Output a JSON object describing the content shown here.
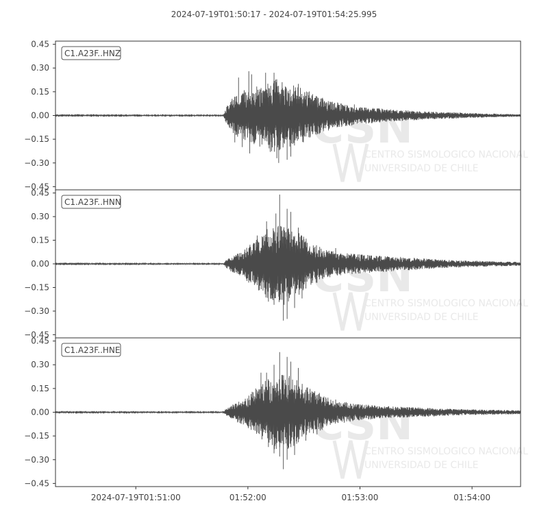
{
  "chart_data": {
    "type": "line",
    "title": "2024-07-19T01:50:17  -  2024-07-19T01:54:25.995",
    "x_ticks": [
      "2024-07-19T01:51:00",
      "01:52:00",
      "01:53:00",
      "01:54:00"
    ],
    "x_tick_seconds": [
      43,
      103,
      163,
      223
    ],
    "x_range_seconds": [
      0,
      248.995
    ],
    "y_ticks": [
      "0.45",
      "0.30",
      "0.15",
      "0.00",
      "−0.15",
      "−0.30",
      "−0.45"
    ],
    "y_tick_values": [
      0.45,
      0.3,
      0.15,
      0.0,
      -0.15,
      -0.3,
      -0.45
    ],
    "grid": false,
    "line_color": "#4a4a4a",
    "watermark": {
      "logo": "CSN",
      "lines": [
        "CENTRO SISMOLOGICO NACIONAL",
        "UNIVERSIDAD DE CHILE"
      ],
      "color": "#e9e9e9"
    },
    "series": [
      {
        "name": "C1.A23F..HNZ",
        "ylim": [
          -0.47,
          0.47
        ],
        "envelope": [
          [
            0,
            0.003
          ],
          [
            90,
            0.004
          ],
          [
            91,
            0.05
          ],
          [
            94,
            0.1
          ],
          [
            100,
            0.16
          ],
          [
            110,
            0.2
          ],
          [
            118,
            0.24
          ],
          [
            124,
            0.21
          ],
          [
            128,
            0.19
          ],
          [
            133,
            0.17
          ],
          [
            141,
            0.12
          ],
          [
            148,
            0.09
          ],
          [
            160,
            0.06
          ],
          [
            178,
            0.04
          ],
          [
            200,
            0.025
          ],
          [
            230,
            0.013
          ],
          [
            248.995,
            0.008
          ]
        ],
        "peaks": [
          [
            103.5,
            0.28
          ],
          [
            112.5,
            0.27
          ],
          [
            117,
            0.27
          ],
          [
            105,
            0.26
          ],
          [
            98,
            0.24
          ],
          [
            100,
            -0.2
          ],
          [
            104,
            -0.24
          ],
          [
            115,
            -0.23
          ],
          [
            118.5,
            -0.27
          ],
          [
            119.5,
            -0.3
          ],
          [
            124,
            -0.28
          ],
          [
            126,
            -0.26
          ],
          [
            96,
            -0.17
          ],
          [
            130,
            -0.15
          ],
          [
            130,
            0.2
          ],
          [
            140,
            0.12
          ],
          [
            160,
            0.07
          ]
        ]
      },
      {
        "name": "C1.A23F..HNN",
        "ylim": [
          -0.47,
          0.47
        ],
        "envelope": [
          [
            0,
            0.003
          ],
          [
            90,
            0.004
          ],
          [
            91,
            0.02
          ],
          [
            94,
            0.05
          ],
          [
            100,
            0.08
          ],
          [
            106,
            0.15
          ],
          [
            113,
            0.22
          ],
          [
            118,
            0.26
          ],
          [
            124,
            0.26
          ],
          [
            130,
            0.2
          ],
          [
            138,
            0.13
          ],
          [
            145,
            0.09
          ],
          [
            155,
            0.07
          ],
          [
            170,
            0.055
          ],
          [
            190,
            0.04
          ],
          [
            210,
            0.025
          ],
          [
            230,
            0.018
          ],
          [
            248.995,
            0.012
          ]
        ],
        "peaks": [
          [
            108,
            0.18
          ],
          [
            113,
            0.27
          ],
          [
            118,
            0.32
          ],
          [
            120,
            0.44
          ],
          [
            124,
            0.35
          ],
          [
            126,
            0.33
          ],
          [
            130,
            0.23
          ],
          [
            114,
            -0.24
          ],
          [
            117,
            -0.26
          ],
          [
            122,
            -0.36
          ],
          [
            124,
            -0.35
          ],
          [
            128,
            -0.28
          ],
          [
            132,
            -0.22
          ],
          [
            140,
            -0.12
          ],
          [
            150,
            0.1
          ]
        ]
      },
      {
        "name": "C1.A23F..HNE",
        "ylim": [
          -0.47,
          0.47
        ],
        "envelope": [
          [
            0,
            0.003
          ],
          [
            90,
            0.004
          ],
          [
            91,
            0.02
          ],
          [
            95,
            0.05
          ],
          [
            100,
            0.08
          ],
          [
            106,
            0.14
          ],
          [
            112,
            0.2
          ],
          [
            118,
            0.24
          ],
          [
            124,
            0.24
          ],
          [
            130,
            0.2
          ],
          [
            136,
            0.15
          ],
          [
            142,
            0.12
          ],
          [
            148,
            0.08
          ],
          [
            160,
            0.055
          ],
          [
            175,
            0.04
          ],
          [
            195,
            0.03
          ],
          [
            215,
            0.02
          ],
          [
            248.995,
            0.012
          ]
        ],
        "peaks": [
          [
            110,
            0.25
          ],
          [
            113,
            0.25
          ],
          [
            117,
            0.3
          ],
          [
            120,
            0.38
          ],
          [
            124,
            0.35
          ],
          [
            126,
            0.32
          ],
          [
            130,
            0.28
          ],
          [
            114,
            -0.22
          ],
          [
            117,
            -0.26
          ],
          [
            120,
            -0.28
          ],
          [
            124,
            -0.3
          ],
          [
            122,
            -0.36
          ],
          [
            128,
            -0.27
          ],
          [
            134,
            -0.18
          ],
          [
            140,
            -0.14
          ],
          [
            150,
            0.08
          ]
        ]
      }
    ]
  }
}
